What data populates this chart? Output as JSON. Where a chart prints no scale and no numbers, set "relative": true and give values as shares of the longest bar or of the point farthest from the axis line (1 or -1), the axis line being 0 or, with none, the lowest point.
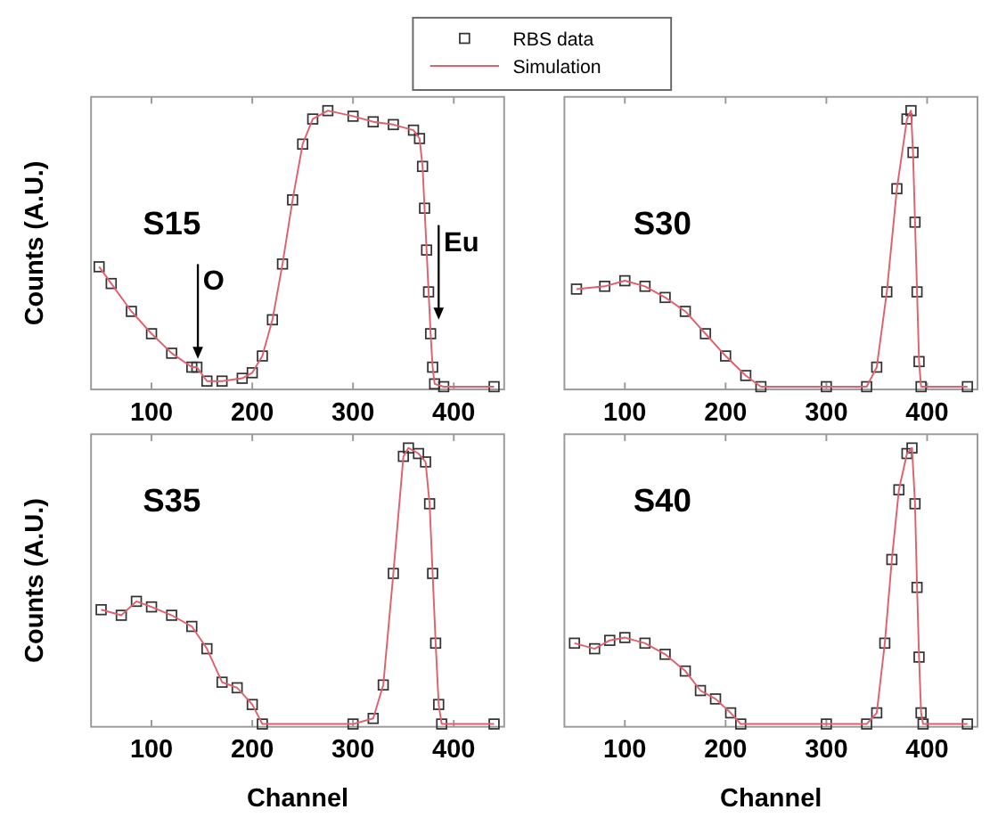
{
  "chart_data": [
    {
      "type": "scatter",
      "title": "S15",
      "ylabel": "Counts (A.U.)",
      "relative": true,
      "xlim": [
        40,
        450
      ],
      "xticks": [
        100,
        200,
        300,
        400
      ],
      "tick_labels": "x",
      "line_style": "solid",
      "legend": "top right",
      "x": [
        48,
        60,
        80,
        100,
        120,
        140,
        145,
        155,
        170,
        190,
        200,
        210,
        220,
        230,
        240,
        250,
        260,
        275,
        300,
        320,
        340,
        360,
        366,
        369,
        371,
        373,
        375,
        377,
        379,
        381,
        390,
        440
      ],
      "series": [
        {
          "name": "RBS data",
          "marker": "square",
          "color": "#333333",
          "values": [
            0.44,
            0.38,
            0.28,
            0.2,
            0.13,
            0.08,
            0.08,
            0.03,
            0.03,
            0.04,
            0.06,
            0.12,
            0.25,
            0.45,
            0.68,
            0.88,
            0.97,
            1.0,
            0.98,
            0.96,
            0.95,
            0.93,
            0.9,
            0.8,
            0.65,
            0.5,
            0.35,
            0.2,
            0.08,
            0.02,
            0.01,
            0.01
          ]
        },
        {
          "name": "Simulation",
          "type": "line",
          "marker": "none",
          "color": "#e06070",
          "values": [
            0.44,
            0.38,
            0.28,
            0.2,
            0.13,
            0.08,
            0.08,
            0.03,
            0.03,
            0.04,
            0.06,
            0.12,
            0.25,
            0.45,
            0.68,
            0.88,
            0.97,
            1.0,
            0.98,
            0.96,
            0.95,
            0.93,
            0.9,
            0.8,
            0.65,
            0.5,
            0.35,
            0.2,
            0.08,
            0.02,
            0.01,
            0.01
          ]
        }
      ],
      "annotations": [
        {
          "text": "O",
          "x": 146,
          "y": 0.11
        },
        {
          "text": "Eu",
          "x": 385,
          "y": 0.25
        }
      ]
    },
    {
      "type": "scatter",
      "title": "S30",
      "relative": true,
      "xlim": [
        40,
        450
      ],
      "xticks": [
        100,
        200,
        300,
        400
      ],
      "tick_labels": "x",
      "line_style": "solid",
      "x": [
        52,
        80,
        100,
        120,
        140,
        160,
        180,
        200,
        220,
        235,
        300,
        340,
        350,
        360,
        370,
        380,
        384,
        386,
        388,
        390,
        392,
        394,
        440
      ],
      "series": [
        {
          "marker": "square",
          "color": "#333333",
          "values": [
            0.36,
            0.37,
            0.39,
            0.37,
            0.33,
            0.28,
            0.2,
            0.12,
            0.05,
            0.01,
            0.01,
            0.01,
            0.08,
            0.35,
            0.72,
            0.97,
            1.0,
            0.85,
            0.6,
            0.35,
            0.1,
            0.01,
            0.01
          ]
        },
        {
          "type": "line",
          "marker": "none",
          "color": "#e06070",
          "values": [
            0.36,
            0.37,
            0.39,
            0.37,
            0.33,
            0.28,
            0.2,
            0.12,
            0.05,
            0.01,
            0.01,
            0.01,
            0.08,
            0.35,
            0.72,
            0.97,
            1.0,
            0.85,
            0.6,
            0.35,
            0.1,
            0.01,
            0.01
          ]
        }
      ]
    },
    {
      "type": "scatter",
      "title": "S35",
      "xlabel": "Channel",
      "ylabel": "Counts (A.U.)",
      "relative": true,
      "xlim": [
        40,
        450
      ],
      "xticks": [
        100,
        200,
        300,
        400
      ],
      "tick_labels": "x",
      "line_style": "solid",
      "x": [
        50,
        70,
        85,
        100,
        120,
        140,
        155,
        170,
        185,
        200,
        210,
        300,
        320,
        330,
        340,
        350,
        355,
        365,
        372,
        376,
        379,
        382,
        385,
        388,
        440
      ],
      "series": [
        {
          "marker": "square",
          "color": "#333333",
          "values": [
            0.42,
            0.4,
            0.45,
            0.43,
            0.4,
            0.36,
            0.28,
            0.16,
            0.14,
            0.08,
            0.01,
            0.01,
            0.03,
            0.15,
            0.55,
            0.97,
            1.0,
            0.98,
            0.95,
            0.8,
            0.55,
            0.3,
            0.08,
            0.01,
            0.01
          ]
        },
        {
          "type": "line",
          "marker": "none",
          "color": "#e06070",
          "values": [
            0.42,
            0.4,
            0.45,
            0.43,
            0.4,
            0.36,
            0.28,
            0.16,
            0.14,
            0.08,
            0.01,
            0.01,
            0.03,
            0.15,
            0.55,
            0.97,
            1.0,
            0.98,
            0.95,
            0.8,
            0.55,
            0.3,
            0.08,
            0.01,
            0.01
          ]
        }
      ]
    },
    {
      "type": "scatter",
      "title": "S40",
      "xlabel": "Channel",
      "relative": true,
      "xlim": [
        40,
        450
      ],
      "xticks": [
        100,
        200,
        300,
        400
      ],
      "tick_labels": "x",
      "line_style": "solid",
      "x": [
        50,
        70,
        85,
        100,
        120,
        140,
        160,
        175,
        190,
        205,
        215,
        300,
        340,
        350,
        358,
        365,
        372,
        380,
        385,
        388,
        390,
        392,
        394,
        396,
        440
      ],
      "series": [
        {
          "marker": "square",
          "color": "#333333",
          "values": [
            0.3,
            0.28,
            0.31,
            0.32,
            0.3,
            0.26,
            0.2,
            0.13,
            0.1,
            0.05,
            0.01,
            0.01,
            0.01,
            0.05,
            0.3,
            0.6,
            0.85,
            0.98,
            1.0,
            0.8,
            0.5,
            0.25,
            0.05,
            0.01,
            0.01
          ]
        },
        {
          "type": "line",
          "marker": "none",
          "color": "#e06070",
          "values": [
            0.3,
            0.28,
            0.31,
            0.32,
            0.3,
            0.26,
            0.2,
            0.13,
            0.1,
            0.05,
            0.01,
            0.01,
            0.01,
            0.05,
            0.3,
            0.6,
            0.85,
            0.98,
            1.0,
            0.8,
            0.5,
            0.25,
            0.05,
            0.01,
            0.01
          ]
        }
      ]
    }
  ]
}
